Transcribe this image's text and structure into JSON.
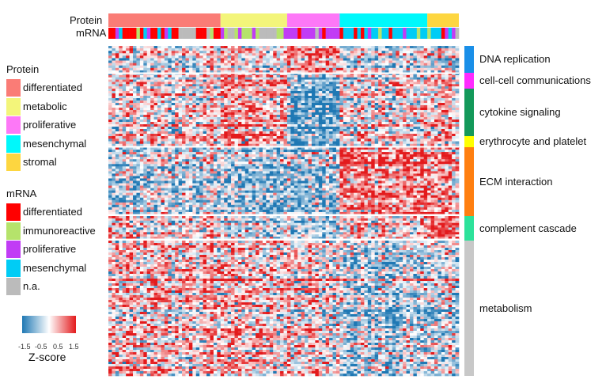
{
  "chart_data": {
    "type": "heatmap",
    "colorbar": {
      "title": "Z-score",
      "ticks": [
        "-1.5",
        "-0.5",
        "0.5",
        "1.5"
      ],
      "range": [
        -1.5,
        1.5
      ],
      "low_color": "#1f78b4",
      "mid_color": "#ffffff",
      "high_color": "#e31a1c"
    },
    "annotation_rows": [
      {
        "label": "Protein"
      },
      {
        "label": "mRNA"
      }
    ],
    "column_groups": [
      {
        "name": "differentiated",
        "columns": 32,
        "mrna": "ddpmddddidmpddmdpmddnnnnndddnidd"
      },
      {
        "name": "metabolic",
        "columns": 19,
        "mrna": "pinnipiiipinnnnniip"
      },
      {
        "name": "proliferative",
        "columns": 15,
        "mrna": "pppdppppnpdpppp"
      },
      {
        "name": "mesenchymal",
        "columns": 25,
        "mrna": "dmmmdmdmpmmimmdmmmpmmmimm"
      },
      {
        "name": "stromal",
        "columns": 9,
        "mrna": "immmdpmpn"
      }
    ],
    "row_groups": [
      {
        "name": "DNA replication",
        "color": "#1a8fe8",
        "block_mean_zscore": [
          -0.2,
          0.0,
          0.8,
          -0.3,
          -0.3
        ]
      },
      {
        "name": "cell-cell communications",
        "color": "#ff2bff",
        "block_mean_zscore": [
          -0.1,
          0.4,
          -0.9,
          -0.1,
          0.2
        ]
      },
      {
        "name": "cytokine signaling",
        "color": "#14995a",
        "block_mean_zscore": [
          0.0,
          0.5,
          -1.2,
          0.0,
          0.3
        ]
      },
      {
        "name": "erythrocyte and platelet",
        "color": "#ffff00",
        "block_mean_zscore": [
          0.0,
          0.4,
          -1.0,
          0.0,
          0.2
        ]
      },
      {
        "name": "ECM interaction",
        "color": "#ff7f10",
        "block_mean_zscore": [
          -0.3,
          -0.6,
          -0.5,
          1.0,
          0.8
        ]
      },
      {
        "name": "complement cascade",
        "color": "#2de29a",
        "block_mean_zscore": [
          0.2,
          -0.3,
          -0.5,
          0.3,
          1.2
        ]
      },
      {
        "name": "metabolism",
        "color": "#c8c8c8",
        "block_mean_zscore": [
          0.3,
          0.3,
          0.2,
          -0.4,
          -0.2
        ]
      }
    ]
  },
  "legend": {
    "protein": {
      "title": "Protein",
      "items": [
        {
          "label": "differentiated",
          "color": "#fa7c76"
        },
        {
          "label": "metabolic",
          "color": "#f3f57a"
        },
        {
          "label": "proliferative",
          "color": "#fd78f7"
        },
        {
          "label": "mesenchymal",
          "color": "#00f8fb"
        },
        {
          "label": "stromal",
          "color": "#fdd640"
        }
      ]
    },
    "mrna": {
      "title": "mRNA",
      "items": [
        {
          "code": "d",
          "label": "differentiated",
          "color": "#ff0000"
        },
        {
          "code": "i",
          "label": "immunoreactive",
          "color": "#b5e36b"
        },
        {
          "code": "p",
          "label": "proliferative",
          "color": "#c13cf5"
        },
        {
          "code": "m",
          "label": "mesenchymal",
          "color": "#00ccf5"
        },
        {
          "code": "n",
          "label": "n.a.",
          "color": "#bbbbbb"
        }
      ]
    }
  }
}
